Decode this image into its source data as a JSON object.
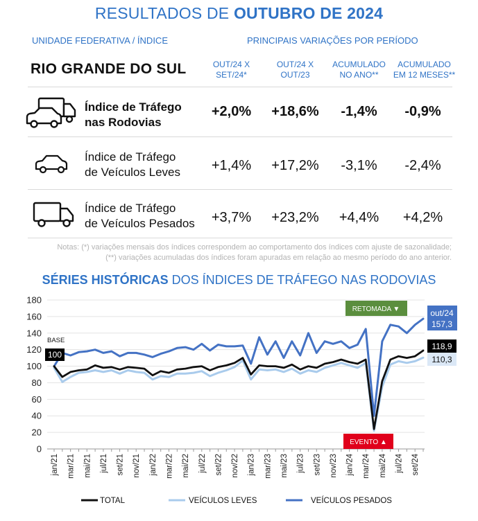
{
  "header": {
    "title_prefix": "RESULTADOS DE ",
    "title_bold": "OUTUBRO DE 2024",
    "left_heading": "UNIDADE FEDERATIVA / ÍNDICE",
    "right_heading": "PRINCIPAIS VARIAÇÕES POR PERÍODO",
    "region": "RIO GRANDE DO SUL",
    "columns": [
      {
        "line1": "OUT/24 X",
        "line2": "SET/24*"
      },
      {
        "line1": "OUT/24 X",
        "line2": "OUT/23"
      },
      {
        "line1": "ACUMULADO",
        "line2": "NO ANO**"
      },
      {
        "line1": "ACUMULADO",
        "line2": "EM 12 MESES**"
      }
    ]
  },
  "rows": [
    {
      "icon": "truck-and-car-icon",
      "line1": "Índice de Tráfego",
      "line2": "nas Rodovias",
      "values": [
        "+2,0%",
        "+18,6%",
        "-1,4%",
        "-0,9%"
      ]
    },
    {
      "icon": "car-icon",
      "line1": "Índice de Tráfego",
      "line2": "de Veículos Leves",
      "values": [
        "+1,4%",
        "+17,2%",
        "-3,1%",
        "-2,4%"
      ]
    },
    {
      "icon": "truck-icon",
      "line1": "Índice de Tráfego",
      "line2": "de Veículos Pesados",
      "values": [
        "+3,7%",
        "+23,2%",
        "+4,4%",
        "+4,2%"
      ]
    }
  ],
  "notes": {
    "line1": "Notas: (*) variações mensais dos índices correspondem ao comportamento dos índices com ajuste de sazonalidade;",
    "line2": "(**) variações acumuladas dos índices foram apuradas em relação ao mesmo período do ano anterior."
  },
  "chart_title": {
    "bold": "SÉRIES HISTÓRICAS",
    "rest": " DOS ÍNDICES DE TRÁFEGO NAS RODOVIAS"
  },
  "colors": {
    "accent": "#2f73c6",
    "total": "#111111",
    "leves": "#a9cbec",
    "pesados": "#4472c4",
    "green_box": "#5b8e3e",
    "red_box": "#e0001b"
  },
  "chart_data": {
    "type": "line",
    "ylim": [
      0,
      180
    ],
    "yticks": [
      0,
      20,
      40,
      60,
      80,
      100,
      120,
      140,
      160,
      180
    ],
    "x": [
      "jan/21",
      "fev/21",
      "mar/21",
      "abr/21",
      "mai/21",
      "jun/21",
      "jul/21",
      "ago/21",
      "set/21",
      "out/21",
      "nov/21",
      "dez/21",
      "jan/22",
      "fev/22",
      "mar/22",
      "abr/22",
      "mai/22",
      "jun/22",
      "jul/22",
      "ago/22",
      "set/22",
      "out/22",
      "nov/22",
      "dez/22",
      "jan/23",
      "fev/23",
      "mar/23",
      "abr/23",
      "mai/23",
      "jun/23",
      "jul/23",
      "ago/23",
      "set/23",
      "out/23",
      "nov/23",
      "dez/23",
      "jan/24",
      "fev/24",
      "mar/24",
      "abr/24",
      "mai/24",
      "jun/24",
      "jul/24",
      "ago/24",
      "set/24",
      "out/24"
    ],
    "xtick_labels": [
      "jan/21",
      "mar/21",
      "mai/21",
      "jul/21",
      "set/21",
      "nov/21",
      "jan/22",
      "mar/22",
      "mai/22",
      "jul/22",
      "set/22",
      "nov/22",
      "jan/23",
      "mar/23",
      "mai/23",
      "jul/23",
      "set/23",
      "nov/23",
      "jan/24",
      "mar/24",
      "mai/24",
      "jul/24",
      "set/24"
    ],
    "series": [
      {
        "name": "TOTAL",
        "color": "#111111",
        "values": [
          100,
          87,
          93,
          95,
          96,
          101,
          98,
          99,
          96,
          99,
          98,
          97,
          89,
          94,
          92,
          96,
          97,
          99,
          100,
          95,
          99,
          101,
          104,
          110,
          90,
          101,
          100,
          100,
          98,
          102,
          96,
          100,
          98,
          103,
          105,
          108,
          105,
          103,
          108,
          24,
          82,
          108,
          112,
          110,
          112,
          118.9
        ]
      },
      {
        "name": "VEÍCULOS LEVES",
        "color": "#a9cbec",
        "values": [
          98,
          81,
          87,
          92,
          93,
          95,
          93,
          95,
          91,
          95,
          93,
          92,
          84,
          88,
          87,
          91,
          91,
          92,
          94,
          88,
          92,
          95,
          99,
          107,
          84,
          96,
          95,
          96,
          93,
          97,
          91,
          95,
          93,
          98,
          101,
          104,
          101,
          98,
          104,
          22,
          75,
          102,
          106,
          104,
          106,
          110.3
        ]
      },
      {
        "name": "VEÍCULOS PESADOS",
        "color": "#4472c4",
        "values": [
          100,
          116,
          113,
          117,
          118,
          120,
          116,
          118,
          112,
          116,
          116,
          114,
          111,
          115,
          118,
          122,
          123,
          120,
          127,
          119,
          126,
          124,
          124,
          125,
          103,
          135,
          114,
          130,
          110,
          130,
          113,
          140,
          116,
          130,
          127,
          130,
          122,
          126,
          145,
          40,
          130,
          150,
          148,
          140,
          150,
          157.3
        ]
      }
    ],
    "labels": {
      "base_caption": "BASE",
      "base_value": "100",
      "last_period": "out/24",
      "last_pesados": "157,3",
      "last_total": "118,9",
      "last_leves": "110,3",
      "retomada": "RETOMADA ▼",
      "evento": "EVENTO ▲"
    },
    "legend_placement": "bottom"
  }
}
